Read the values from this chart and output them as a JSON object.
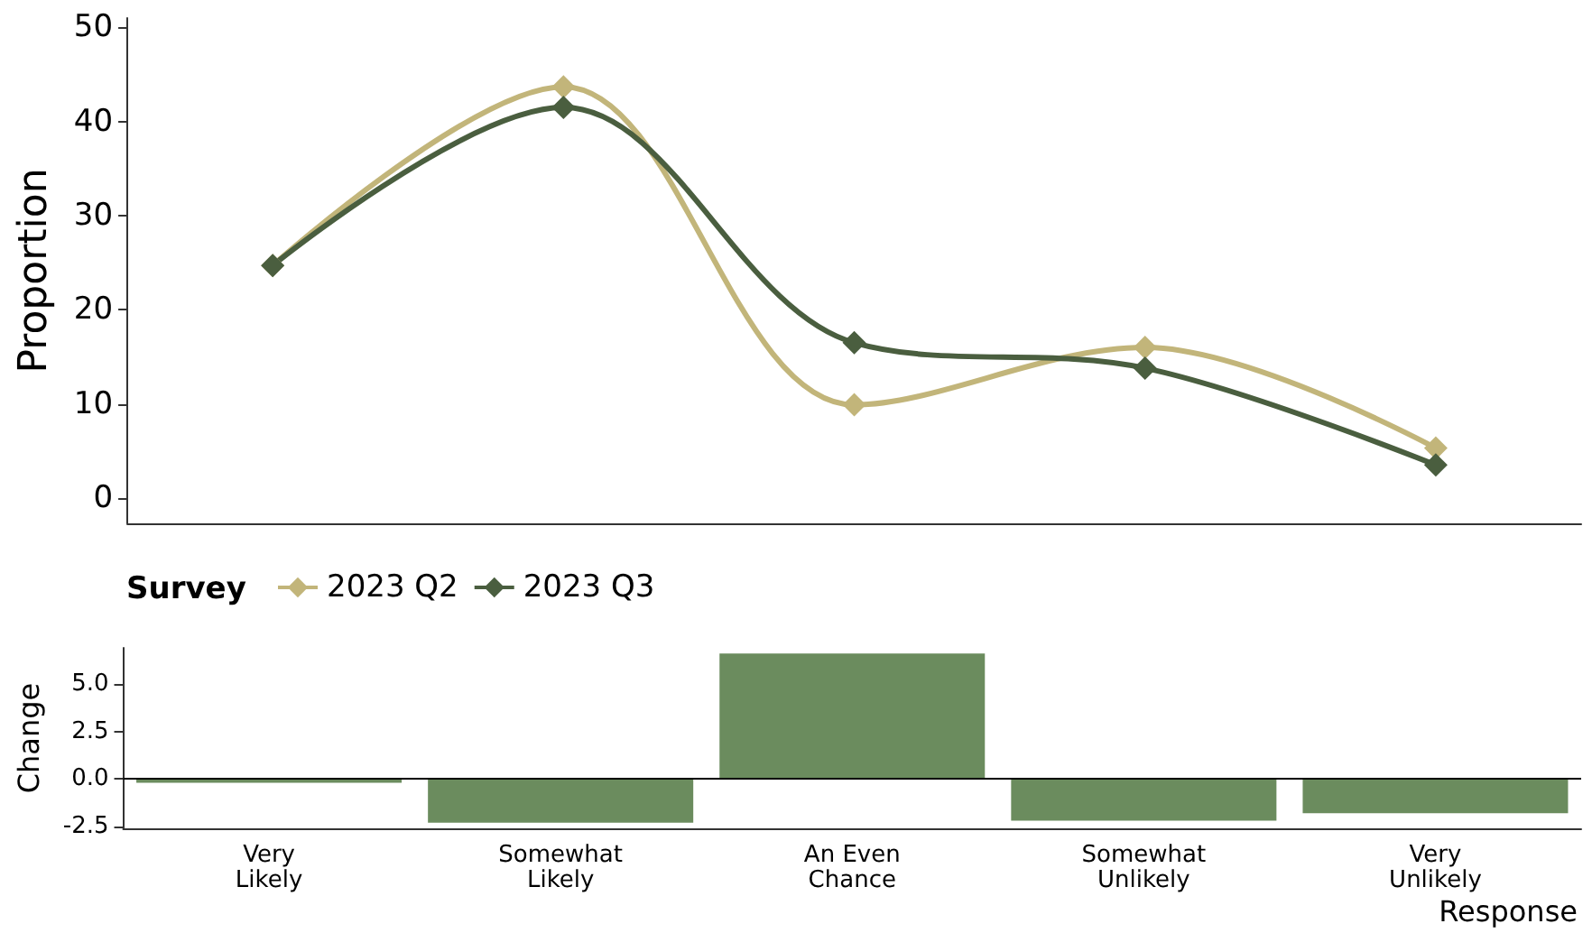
{
  "chart_data": [
    {
      "type": "line",
      "ylabel": "Proportion",
      "legend_title": "Survey",
      "categories": [
        null,
        null,
        null,
        null,
        null
      ],
      "series": [
        {
          "name": "2023 Q2",
          "color": "#c2b57a",
          "values": [
            24.7,
            43.7,
            9.9,
            16.0,
            5.3
          ]
        },
        {
          "name": "2023 Q3",
          "color": "#4a5e3f",
          "values": [
            24.7,
            41.5,
            16.5,
            13.8,
            3.5
          ]
        }
      ],
      "ylim": [
        -2.7,
        51
      ],
      "yticks": [
        0,
        10,
        20,
        30,
        40,
        50
      ],
      "grid": false,
      "legend": "bottom",
      "marker": "diamond",
      "line_style": "solid"
    },
    {
      "type": "bar",
      "ylabel": "Change",
      "xlabel": "Response",
      "categories": [
        "Very\nLikely",
        "Somewhat\nLikely",
        "An Even\nChance",
        "Somewhat\nUnlikely",
        "Very\nUnlikely"
      ],
      "values": [
        -0.2,
        -2.3,
        6.6,
        -2.2,
        -1.8
      ],
      "color": "#6b8c5e",
      "ylim": [
        -2.6,
        6.9
      ],
      "yticks": [
        {
          "value": -2.5,
          "label": "-2.5"
        },
        {
          "value": 0,
          "label": "0.0"
        },
        {
          "value": 2.5,
          "label": "2.5"
        },
        {
          "value": 5,
          "label": "5.0"
        }
      ],
      "grid": false,
      "ref_lines": [
        {
          "axis": "y",
          "value": 0
        }
      ]
    }
  ]
}
